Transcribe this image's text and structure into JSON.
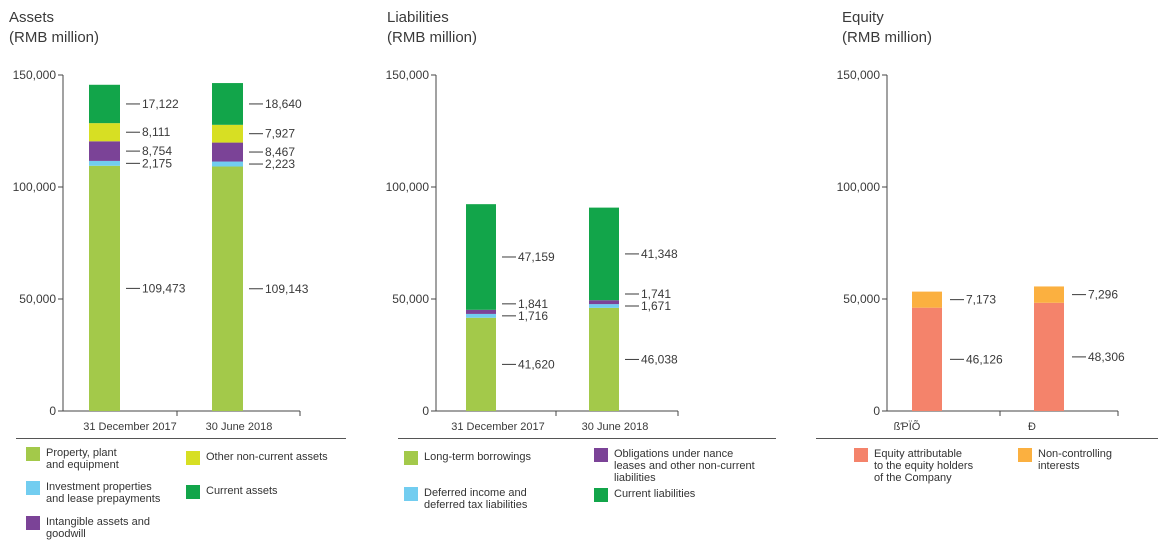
{
  "chart_data": [
    {
      "type": "bar",
      "stacked": true,
      "title": "Assets",
      "subtitle": "(RMB million)",
      "categories": [
        "31 December 2017",
        "30 June 2018"
      ],
      "ylim": [
        0,
        150000
      ],
      "yticks": [
        0,
        50000,
        100000,
        150000
      ],
      "ytick_labels": [
        "0",
        "50,000",
        "100,000",
        "150,000"
      ],
      "series": [
        {
          "name": "Property, plant and equipment",
          "color": "#a3c94a",
          "values": [
            109473,
            109143
          ],
          "labels": [
            "109,473",
            "109,143"
          ]
        },
        {
          "name": "Investment properties and lease prepayments",
          "color": "#72cdf0",
          "values": [
            2175,
            2223
          ],
          "labels": [
            "2,175",
            "2,223"
          ]
        },
        {
          "name": "Intangible assets and goodwill",
          "color": "#7b4397",
          "values": [
            8754,
            8467
          ],
          "labels": [
            "8,754",
            "8,467"
          ]
        },
        {
          "name": "Other non-current assets",
          "color": "#d7df23",
          "values": [
            8111,
            7927
          ],
          "labels": [
            "8,111",
            "7,927"
          ]
        },
        {
          "name": "Current assets",
          "color": "#12a54a",
          "values": [
            17122,
            18640
          ],
          "labels": [
            "17,122",
            "18,640"
          ]
        }
      ],
      "legend": [
        {
          "text": "Property, plant\nand equipment",
          "color": "#a3c94a"
        },
        {
          "text": "Other non-current assets",
          "color": "#d7df23"
        },
        {
          "text": "Investment properties\nand lease prepayments",
          "color": "#72cdf0"
        },
        {
          "text": "Current assets",
          "color": "#12a54a"
        },
        {
          "text": "Intangible assets and\ngoodwill",
          "color": "#7b4397"
        }
      ]
    },
    {
      "type": "bar",
      "stacked": true,
      "title": "Liabilities",
      "subtitle": "(RMB million)",
      "categories": [
        "31 December 2017",
        "30 June 2018"
      ],
      "ylim": [
        0,
        150000
      ],
      "yticks": [
        0,
        50000,
        100000,
        150000
      ],
      "ytick_labels": [
        "0",
        "50,000",
        "100,000",
        "150,000"
      ],
      "series": [
        {
          "name": "Long-term borrowings",
          "color": "#a3c94a",
          "values": [
            41620,
            46038
          ],
          "labels": [
            "41,620",
            "46,038"
          ]
        },
        {
          "name": "Deferred income and deferred tax liabilities",
          "color": "#72cdf0",
          "values": [
            1716,
            1671
          ],
          "labels": [
            "1,716",
            "1,671"
          ]
        },
        {
          "name": "Obligations under nance leases and other non-current liabilities",
          "color": "#7b4397",
          "values": [
            1841,
            1741
          ],
          "labels": [
            "1,841",
            "1,741"
          ]
        },
        {
          "name": "Current liabilities",
          "color": "#12a54a",
          "values": [
            47159,
            41348
          ],
          "labels": [
            "47,159",
            "41,348"
          ]
        }
      ],
      "legend": [
        {
          "text": "Long-term borrowings",
          "color": "#a3c94a"
        },
        {
          "text": "Obligations under   nance\nleases and other non-current\nliabilities",
          "color": "#7b4397"
        },
        {
          "text": "Deferred income and\ndeferred tax liabilities",
          "color": "#72cdf0"
        },
        {
          "text": "Current liabilities",
          "color": "#12a54a"
        }
      ]
    },
    {
      "type": "bar",
      "stacked": true,
      "title": "Equity",
      "subtitle": "(RMB million)",
      "categories": [
        "ßƤÏÕ",
        "Ð"
      ],
      "ylim": [
        0,
        150000
      ],
      "yticks": [
        0,
        50000,
        100000,
        150000
      ],
      "ytick_labels": [
        "0",
        "50,000",
        "100,000",
        "150,000"
      ],
      "series": [
        {
          "name": "Equity attributable to the equity holders of the Company",
          "color": "#f4836b",
          "values": [
            46126,
            48306
          ],
          "labels": [
            "46,126",
            "48,306"
          ]
        },
        {
          "name": "Non-controlling interests",
          "color": "#fbb040",
          "values": [
            7173,
            7296
          ],
          "labels": [
            "7,173",
            "7,296"
          ]
        }
      ],
      "legend": [
        {
          "text": "Equity attributable\nto the equity holders\nof the Company",
          "color": "#f4836b"
        },
        {
          "text": "Non-controlling\ninterests",
          "color": "#fbb040"
        }
      ]
    }
  ]
}
